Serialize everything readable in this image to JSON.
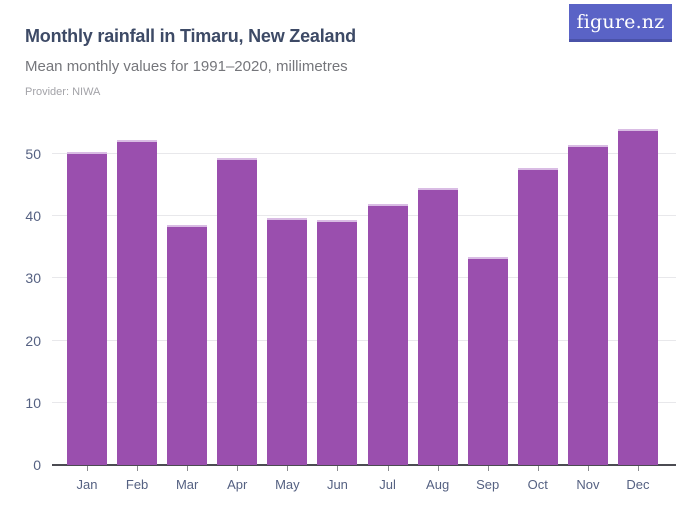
{
  "header": {
    "title": "Monthly rainfall in Timaru, New Zealand",
    "subtitle": "Mean monthly values for 1991–2020, millimetres",
    "provider": "Provider: NIWA",
    "logo_text": "figure.nz"
  },
  "colors": {
    "bar": "#9a4fae",
    "bar_top": "#d9bce4",
    "logo_bg": "#5a63c6",
    "logo_shadow": "#4a52a8",
    "title": "#3d4a66",
    "subtitle": "#75767b",
    "provider": "#a3a3a8",
    "axis_label": "#556182",
    "gridline": "#e8e8eb",
    "baseline": "#4b4b52",
    "tick": "#8a8a90"
  },
  "chart_data": {
    "type": "bar",
    "title": "Monthly rainfall in Timaru, New Zealand",
    "subtitle": "Mean monthly values for 1991–2020, millimetres",
    "provider": "NIWA",
    "categories": [
      "Jan",
      "Feb",
      "Mar",
      "Apr",
      "May",
      "Jun",
      "Jul",
      "Aug",
      "Sep",
      "Oct",
      "Nov",
      "Dec"
    ],
    "values": [
      50.3,
      52.2,
      38.6,
      49.3,
      39.7,
      39.4,
      42.0,
      44.6,
      33.5,
      47.8,
      51.5,
      54.0
    ],
    "xlabel": "",
    "ylabel": "millimetres",
    "ylim": [
      0,
      55
    ],
    "yticks": [
      0,
      10,
      20,
      30,
      40,
      50
    ],
    "grid": true,
    "legend": "none",
    "bar_color": "#9a4fae"
  }
}
